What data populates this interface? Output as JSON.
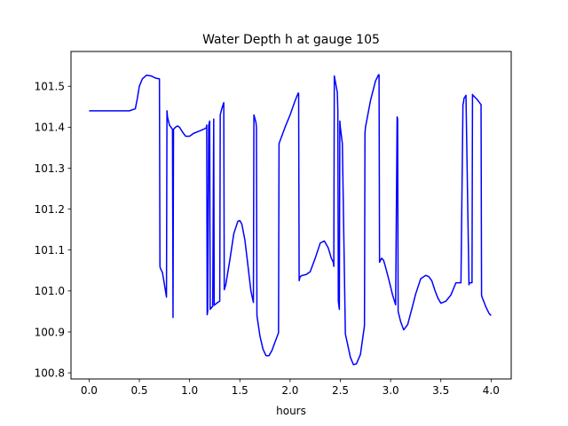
{
  "chart_data": {
    "type": "line",
    "title": "Water Depth h at gauge 105",
    "xlabel": "hours",
    "ylabel": "",
    "xlim": [
      -0.18,
      4.2
    ],
    "ylim": [
      100.785,
      101.585
    ],
    "xticks": [
      0.0,
      0.5,
      1.0,
      1.5,
      2.0,
      2.5,
      3.0,
      3.5,
      4.0
    ],
    "xtick_labels": [
      "0.0",
      "0.5",
      "1.0",
      "1.5",
      "2.0",
      "2.5",
      "3.0",
      "3.5",
      "4.0"
    ],
    "yticks": [
      100.8,
      100.9,
      101.0,
      101.1,
      101.2,
      101.3,
      101.4,
      101.5
    ],
    "ytick_labels": [
      "100.8",
      "100.9",
      "101.0",
      "101.1",
      "101.2",
      "101.3",
      "101.4",
      "101.5"
    ],
    "grid": false,
    "legend": "none",
    "series": [
      {
        "color": "#0000ff",
        "x": [
          0.0,
          0.2,
          0.4,
          0.46,
          0.48,
          0.5,
          0.53,
          0.57,
          0.62,
          0.66,
          0.7,
          0.705,
          0.71,
          0.73,
          0.75,
          0.77,
          0.775,
          0.78,
          0.8,
          0.83,
          0.835,
          0.84,
          0.86,
          0.88,
          0.9,
          0.93,
          0.96,
          1.0,
          1.04,
          1.08,
          1.12,
          1.165,
          1.17,
          1.175,
          1.18,
          1.19,
          1.2,
          1.205,
          1.22,
          1.23,
          1.24,
          1.245,
          1.26,
          1.28,
          1.3,
          1.305,
          1.32,
          1.34,
          1.345,
          1.36,
          1.4,
          1.44,
          1.48,
          1.5,
          1.52,
          1.55,
          1.58,
          1.61,
          1.635,
          1.64,
          1.66,
          1.665,
          1.67,
          1.7,
          1.73,
          1.76,
          1.79,
          1.82,
          1.85,
          1.885,
          1.89,
          1.95,
          2.0,
          2.05,
          2.08,
          2.085,
          2.09,
          2.1,
          2.12,
          2.16,
          2.2,
          2.25,
          2.3,
          2.34,
          2.38,
          2.41,
          2.43,
          2.435,
          2.44,
          2.47,
          2.475,
          2.48,
          2.49,
          2.495,
          2.5,
          2.52,
          2.55,
          2.6,
          2.63,
          2.66,
          2.7,
          2.74,
          2.745,
          2.75,
          2.8,
          2.85,
          2.88,
          2.885,
          2.89,
          2.91,
          2.93,
          2.95,
          2.98,
          3.02,
          3.05,
          3.065,
          3.07,
          3.075,
          3.08,
          3.1,
          3.13,
          3.17,
          3.21,
          3.25,
          3.3,
          3.35,
          3.38,
          3.41,
          3.44,
          3.47,
          3.5,
          3.55,
          3.6,
          3.65,
          3.7,
          3.72,
          3.725,
          3.73,
          3.75,
          3.78,
          3.785,
          3.79,
          3.8,
          3.81,
          3.815,
          3.82,
          3.86,
          3.9,
          3.905,
          3.91,
          3.95,
          3.98,
          4.0
        ],
        "y": [
          101.44,
          101.44,
          101.44,
          101.445,
          101.47,
          101.5,
          101.518,
          101.527,
          101.525,
          101.52,
          101.518,
          101.06,
          101.055,
          101.045,
          101.015,
          100.985,
          101.44,
          101.425,
          101.405,
          101.395,
          100.935,
          101.395,
          101.4,
          101.403,
          101.4,
          101.388,
          101.378,
          101.378,
          101.385,
          101.389,
          101.393,
          101.398,
          101.405,
          100.942,
          100.95,
          101.405,
          101.415,
          100.955,
          100.96,
          100.962,
          101.42,
          100.965,
          100.968,
          100.972,
          100.975,
          101.43,
          101.445,
          101.46,
          101.003,
          101.015,
          101.075,
          101.14,
          101.17,
          101.172,
          101.163,
          101.125,
          101.063,
          101.0,
          100.972,
          101.43,
          101.412,
          101.4,
          100.94,
          100.89,
          100.858,
          100.842,
          100.842,
          100.855,
          100.875,
          100.898,
          101.36,
          101.4,
          101.43,
          101.465,
          101.483,
          101.483,
          101.025,
          101.035,
          101.038,
          101.04,
          101.047,
          101.08,
          101.117,
          101.122,
          101.105,
          101.08,
          101.07,
          101.06,
          101.525,
          101.485,
          101.44,
          100.975,
          100.955,
          101.415,
          101.4,
          101.36,
          100.895,
          100.838,
          100.82,
          100.822,
          100.845,
          100.915,
          101.385,
          101.4,
          101.465,
          101.513,
          101.528,
          101.528,
          101.07,
          101.08,
          101.075,
          101.058,
          101.03,
          100.99,
          100.966,
          101.425,
          101.42,
          100.95,
          100.945,
          100.925,
          100.905,
          100.918,
          100.955,
          100.993,
          101.03,
          101.038,
          101.035,
          101.025,
          101.002,
          100.983,
          100.97,
          100.975,
          100.99,
          101.02,
          101.02,
          101.455,
          101.46,
          101.47,
          101.478,
          101.015,
          101.02,
          101.02,
          101.02,
          101.02,
          101.48,
          101.478,
          101.468,
          101.455,
          100.99,
          100.985,
          100.96,
          100.945,
          100.94
        ]
      }
    ]
  }
}
